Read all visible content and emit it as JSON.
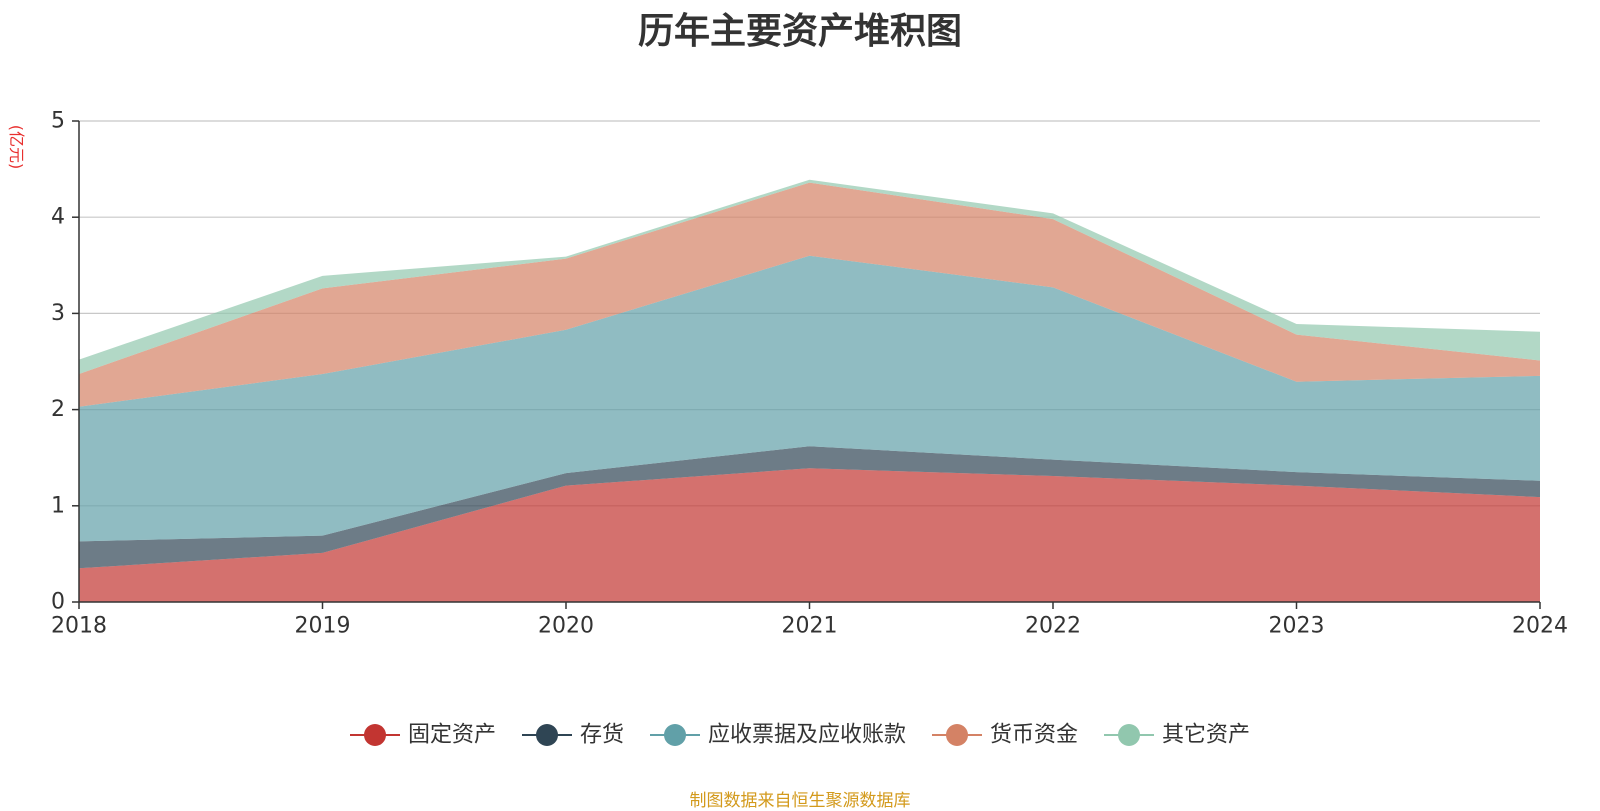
{
  "chart_data": {
    "type": "area",
    "stacked": true,
    "title": "历年主要资产堆积图",
    "unit": "(亿元)",
    "x": [
      "2018",
      "2019",
      "2020",
      "2021",
      "2022",
      "2023",
      "2024"
    ],
    "ylim": [
      0,
      5
    ],
    "yticks": [
      "0",
      "1",
      "2",
      "3",
      "4",
      "5"
    ],
    "grid": true,
    "legend_position": "bottom",
    "series": [
      {
        "name": "固定资产",
        "color": "#c23531",
        "values": [
          0.35,
          0.51,
          1.21,
          1.39,
          1.31,
          1.21,
          1.09
        ]
      },
      {
        "name": "存货",
        "color": "#2f4554",
        "values": [
          0.28,
          0.18,
          0.13,
          0.23,
          0.17,
          0.14,
          0.17
        ]
      },
      {
        "name": "应收票据及应收账款",
        "color": "#61a0a8",
        "values": [
          1.4,
          1.68,
          1.49,
          1.98,
          1.79,
          0.94,
          1.09
        ]
      },
      {
        "name": "货币资金",
        "color": "#d48265",
        "values": [
          0.34,
          0.89,
          0.74,
          0.76,
          0.71,
          0.49,
          0.16
        ]
      },
      {
        "name": "其它资产",
        "color": "#91c7ae",
        "values": [
          0.15,
          0.13,
          0.02,
          0.03,
          0.06,
          0.11,
          0.3
        ]
      }
    ]
  },
  "source_note": "制图数据来自恒生聚源数据库"
}
